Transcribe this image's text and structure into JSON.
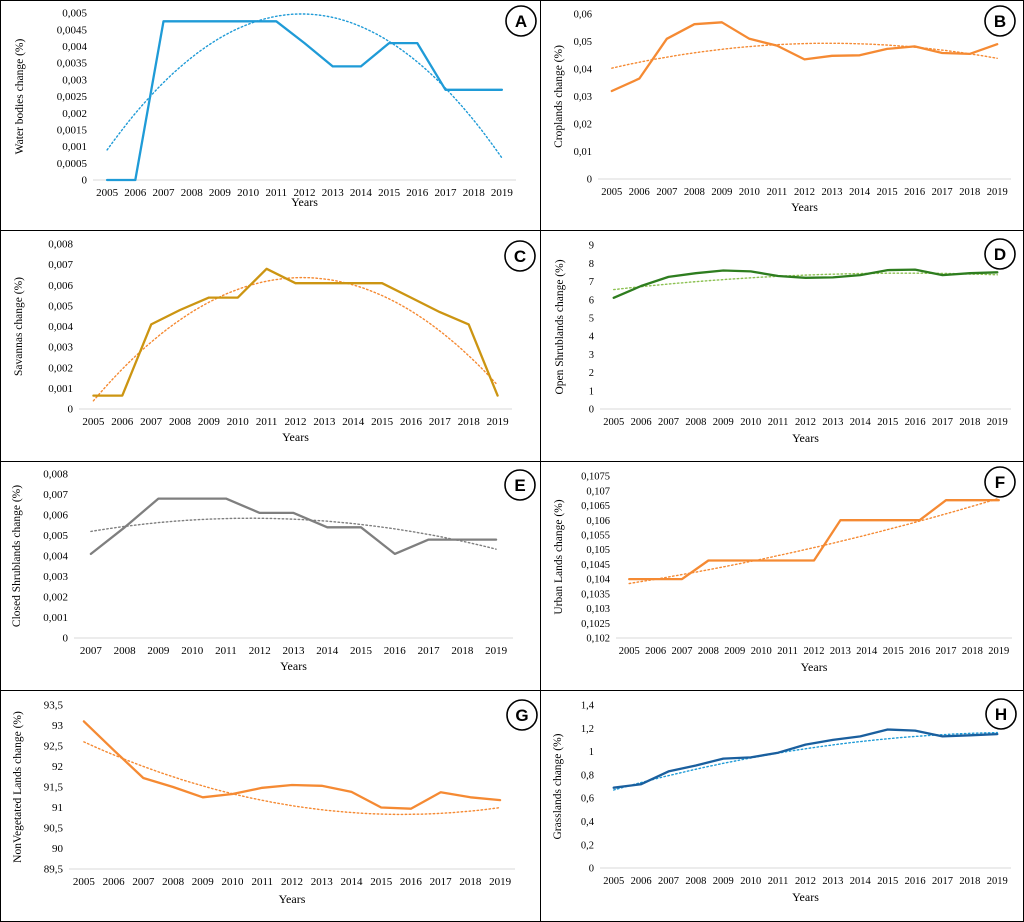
{
  "figure": {
    "x_axis_label": "Years"
  },
  "chart_data": [
    {
      "id": "A",
      "type": "line",
      "ylabel": "Water bodies change (%)",
      "categories": [
        "2005",
        "2006",
        "2007",
        "2008",
        "2009",
        "2010",
        "2011",
        "2012",
        "2013",
        "2014",
        "2015",
        "2016",
        "2017",
        "2018",
        "2019"
      ],
      "values": [
        0,
        0,
        0.00475,
        0.00475,
        0.00475,
        0.00475,
        0.00475,
        0.0041,
        0.0034,
        0.0034,
        0.0041,
        0.0041,
        0.0027,
        0.0027,
        0.0027
      ],
      "trend": {
        "type": "polynomial",
        "color": "#1f9bd7",
        "coef": [
          0.0009,
          0.00118,
          -8.55e-05
        ]
      },
      "ylim": [
        0,
        0.005
      ],
      "yticks": [
        0,
        0.0005,
        0.001,
        0.0015,
        0.002,
        0.0025,
        0.003,
        0.0035,
        0.004,
        0.0045,
        0.005
      ],
      "ytick_labels": [
        "0",
        "0,0005",
        "0,001",
        "0,0015",
        "0,002",
        "0,0025",
        "0,003",
        "0,0035",
        "0,004",
        "0,0045",
        "0,005"
      ],
      "color": "#1f9bd7",
      "xlabel": "Years"
    },
    {
      "id": "B",
      "type": "line",
      "ylabel": "Croplands change (%)",
      "categories": [
        "2005",
        "2006",
        "2007",
        "2008",
        "2009",
        "2010",
        "2011",
        "2012",
        "2013",
        "2014",
        "2015",
        "2016",
        "2017",
        "2018",
        "2019"
      ],
      "values": [
        0.032,
        0.0365,
        0.051,
        0.0563,
        0.057,
        0.051,
        0.0485,
        0.0435,
        0.0448,
        0.045,
        0.0473,
        0.0482,
        0.0458,
        0.0455,
        0.049
      ],
      "trend": {
        "type": "polynomial",
        "color": "#f58a33",
        "coef": [
          0.0403,
          0.0023,
          -0.000146
        ]
      },
      "ylim": [
        0,
        0.06
      ],
      "yticks": [
        0,
        0.01,
        0.02,
        0.03,
        0.04,
        0.05,
        0.06
      ],
      "ytick_labels": [
        "0",
        "0,01",
        "0,02",
        "0,03",
        "0,04",
        "0,05",
        "0,06"
      ],
      "color": "#f58a33",
      "xlabel": "Years"
    },
    {
      "id": "C",
      "type": "line",
      "ylabel": "Savannas change (%)",
      "categories": [
        "2005",
        "2006",
        "2007",
        "2008",
        "2009",
        "2010",
        "2011",
        "2012",
        "2013",
        "2014",
        "2015",
        "2016",
        "2017",
        "2018",
        "2019"
      ],
      "values": [
        0.00065,
        0.00065,
        0.0041,
        0.0048,
        0.0054,
        0.0054,
        0.0068,
        0.0061,
        0.0061,
        0.0061,
        0.0061,
        0.0054,
        0.0047,
        0.0041,
        0.00065
      ],
      "trend": {
        "type": "polynomial",
        "color": "#f58a33",
        "coef": [
          0.0004,
          0.00165,
          -0.000114
        ]
      },
      "ylim": [
        0,
        0.008
      ],
      "yticks": [
        0,
        0.001,
        0.002,
        0.003,
        0.004,
        0.005,
        0.006,
        0.007,
        0.008
      ],
      "ytick_labels": [
        "0",
        "0,001",
        "0,002",
        "0,003",
        "0,004",
        "0,005",
        "0,006",
        "0,007",
        "0,008"
      ],
      "color": "#cc9512",
      "xlabel": "Years"
    },
    {
      "id": "D",
      "type": "line",
      "ylabel": "Open Shrublands change (%)",
      "categories": [
        "2005",
        "2006",
        "2007",
        "2008",
        "2009",
        "2010",
        "2011",
        "2012",
        "2013",
        "2014",
        "2015",
        "2016",
        "2017",
        "2018",
        "2019"
      ],
      "values": [
        6.1,
        6.75,
        7.25,
        7.45,
        7.6,
        7.55,
        7.3,
        7.2,
        7.22,
        7.35,
        7.62,
        7.65,
        7.35,
        7.45,
        7.5
      ],
      "trend": {
        "type": "polynomial",
        "color": "#8cc152",
        "coef": [
          6.55,
          0.17,
          -0.008
        ]
      },
      "ylim": [
        0,
        9
      ],
      "yticks": [
        0,
        1,
        2,
        3,
        4,
        5,
        6,
        7,
        8,
        9
      ],
      "ytick_labels": [
        "0",
        "1",
        "2",
        "3",
        "4",
        "5",
        "6",
        "7",
        "8",
        "9"
      ],
      "color": "#2e7d1f",
      "xlabel": "Years"
    },
    {
      "id": "E",
      "type": "line",
      "ylabel": "Closed Shrublands change (%)",
      "categories": [
        "2007",
        "2008",
        "2009",
        "2010",
        "2011",
        "2012",
        "2013",
        "2014",
        "2015",
        "2016",
        "2017",
        "2018",
        "2019"
      ],
      "values": [
        0.0041,
        0.0054,
        0.0068,
        0.0068,
        0.0068,
        0.0061,
        0.0061,
        0.0054,
        0.0054,
        0.0041,
        0.0048,
        0.0048,
        0.0048
      ],
      "trend": {
        "type": "polynomial",
        "color": "#7f7f7f",
        "coef": [
          0.0052,
          0.000271,
          -2.86e-05
        ]
      },
      "ylim": [
        0,
        0.008
      ],
      "yticks": [
        0,
        0.001,
        0.002,
        0.003,
        0.004,
        0.005,
        0.006,
        0.007,
        0.008
      ],
      "ytick_labels": [
        "0",
        "0,001",
        "0,002",
        "0,003",
        "0,004",
        "0,005",
        "0,006",
        "0,007",
        "0,008"
      ],
      "color": "#7f7f7f",
      "xlabel": "Years"
    },
    {
      "id": "F",
      "type": "line",
      "ylabel": "Urban Lands change (%)",
      "categories": [
        "2005",
        "2006",
        "2007",
        "2008",
        "2009",
        "2010",
        "2011",
        "2012",
        "2013",
        "2014",
        "2015",
        "2016",
        "2017",
        "2018",
        "2019"
      ],
      "values": [
        0.104,
        0.104,
        0.104,
        0.10463,
        0.10463,
        0.10463,
        0.10463,
        0.10463,
        0.106,
        0.106,
        0.106,
        0.106,
        0.10668,
        0.10668,
        0.10668
      ],
      "trend": {
        "type": "polynomial",
        "color": "#f58a33",
        "coef": [
          0.10385,
          0.000142,
          4.6e-06
        ]
      },
      "ylim": [
        0.102,
        0.1075
      ],
      "yticks": [
        0.102,
        0.1025,
        0.103,
        0.1035,
        0.104,
        0.1045,
        0.105,
        0.1055,
        0.106,
        0.1065,
        0.107,
        0.1075
      ],
      "ytick_labels": [
        "0,102",
        "0,1025",
        "0,103",
        "0,1035",
        "0,104",
        "0,1045",
        "0,105",
        "0,1055",
        "0,106",
        "0,1065",
        "0,107",
        "0,1075"
      ],
      "color": "#f58a33",
      "xlabel": "Years"
    },
    {
      "id": "G",
      "type": "line",
      "ylabel": "NonVegetated Lands change (%)",
      "categories": [
        "2005",
        "2006",
        "2007",
        "2008",
        "2009",
        "2010",
        "2011",
        "2012",
        "2013",
        "2014",
        "2015",
        "2016",
        "2017",
        "2018",
        "2019"
      ],
      "values": [
        93.1,
        92.4,
        91.72,
        91.5,
        91.25,
        91.33,
        91.48,
        91.55,
        91.53,
        91.38,
        91.0,
        90.97,
        91.37,
        91.25,
        91.18
      ],
      "trend": {
        "type": "polynomial",
        "color": "#f58a33",
        "coef": [
          92.6,
          -0.33,
          0.0154
        ]
      },
      "ylim": [
        89.5,
        93.5
      ],
      "yticks": [
        89.5,
        90,
        90.5,
        91,
        91.5,
        92,
        92.5,
        93,
        93.5
      ],
      "ytick_labels": [
        "89,5",
        "90",
        "90,5",
        "91",
        "91,5",
        "92",
        "92,5",
        "93",
        "93,5"
      ],
      "color": "#f58a33",
      "xlabel": "Years"
    },
    {
      "id": "H",
      "type": "line",
      "ylabel": "Grasslands change (%)",
      "categories": [
        "2005",
        "2006",
        "2007",
        "2008",
        "2009",
        "2010",
        "2011",
        "2012",
        "2013",
        "2014",
        "2015",
        "2016",
        "2017",
        "2018",
        "2019"
      ],
      "values": [
        0.69,
        0.72,
        0.83,
        0.88,
        0.94,
        0.95,
        0.99,
        1.06,
        1.1,
        1.13,
        1.19,
        1.18,
        1.13,
        1.14,
        1.15
      ],
      "trend": {
        "type": "polynomial",
        "color": "#1f9bd7",
        "coef": [
          0.67,
          0.066,
          -0.0022
        ]
      },
      "ylim": [
        0,
        1.4
      ],
      "yticks": [
        0,
        0.2,
        0.4,
        0.6,
        0.8,
        1,
        1.2,
        1.4
      ],
      "ytick_labels": [
        "0",
        "0,2",
        "0,4",
        "0,6",
        "0,8",
        "1",
        "1,2",
        "1,4"
      ],
      "color": "#1a5f9e",
      "xlabel": "Years"
    }
  ]
}
